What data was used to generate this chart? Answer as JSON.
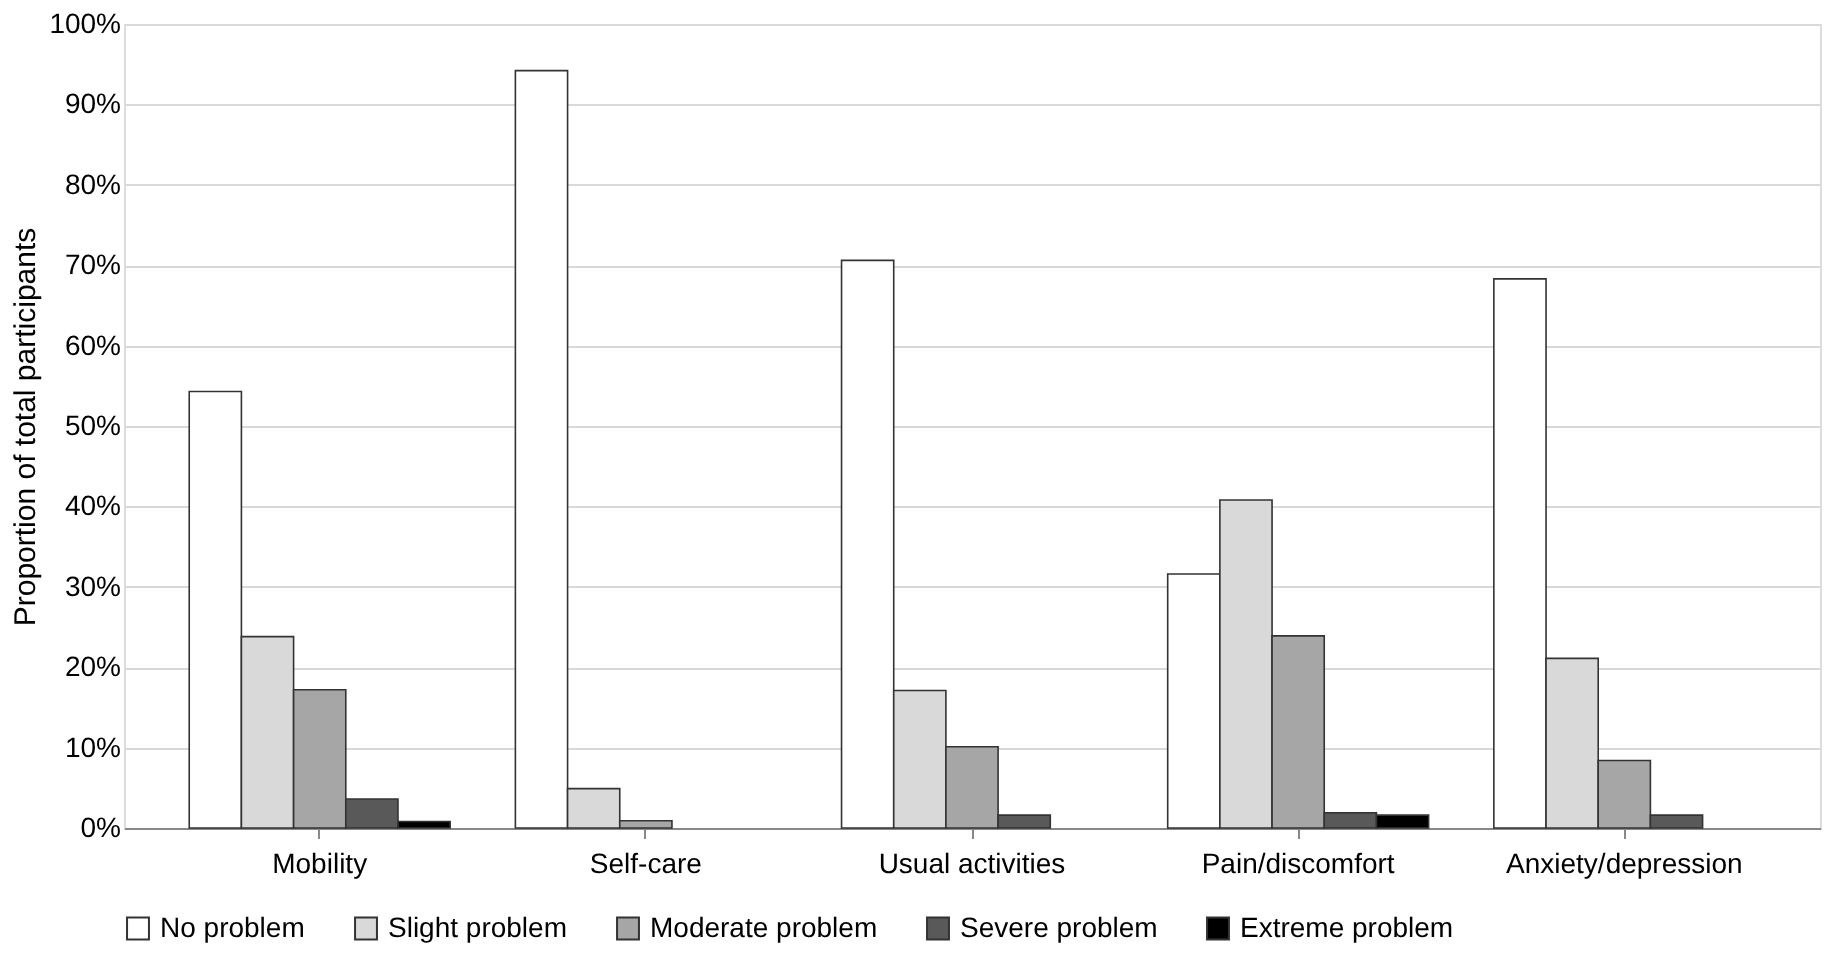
{
  "chart_data": {
    "type": "bar",
    "ylabel": "Proportion of total participants",
    "categories": [
      "Mobility",
      "Self-care",
      "Usual activities",
      "Pain/discomfort",
      "Anxiety/depression"
    ],
    "series": [
      {
        "name": "No problem",
        "color": "#ffffff",
        "values": [
          54.3,
          94.2,
          70.6,
          31.6,
          68.3
        ]
      },
      {
        "name": "Slight problem",
        "color": "#d9d9d9",
        "values": [
          23.8,
          4.9,
          17.1,
          40.8,
          21.1
        ]
      },
      {
        "name": "Moderate problem",
        "color": "#a6a6a6",
        "values": [
          17.2,
          0.9,
          10.1,
          23.9,
          8.4
        ]
      },
      {
        "name": "Severe problem",
        "color": "#595959",
        "values": [
          3.6,
          0,
          1.6,
          1.9,
          1.6
        ]
      },
      {
        "name": "Extreme problem",
        "color": "#000000",
        "values": [
          0.8,
          0,
          0,
          1.6,
          0
        ]
      }
    ],
    "ylim": [
      0,
      100
    ],
    "yticks": [
      {
        "value": 0,
        "label": "0%"
      },
      {
        "value": 10,
        "label": "10%"
      },
      {
        "value": 20,
        "label": "20%"
      },
      {
        "value": 30,
        "label": "30%"
      },
      {
        "value": 40,
        "label": "40%"
      },
      {
        "value": 50,
        "label": "50%"
      },
      {
        "value": 60,
        "label": "60%"
      },
      {
        "value": 70,
        "label": "70%"
      },
      {
        "value": 80,
        "label": "80%"
      },
      {
        "value": 90,
        "label": "90%"
      },
      {
        "value": 100,
        "label": "100%"
      }
    ],
    "grid": "y",
    "legend": "bottom"
  }
}
